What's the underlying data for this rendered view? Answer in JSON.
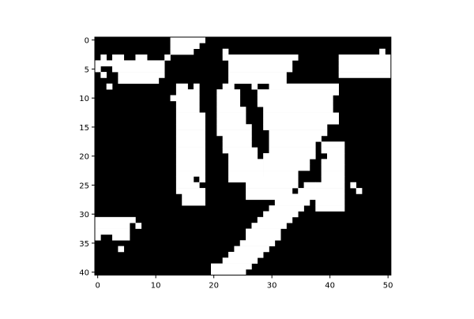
{
  "chart_data": {
    "type": "heatmap",
    "title": "",
    "xlabel": "",
    "ylabel": "",
    "colormap": [
      "#000000",
      "#ffffff"
    ],
    "xlim": [
      -0.5,
      50.5
    ],
    "ylim": [
      40.5,
      -0.5
    ],
    "x_ticks": [
      0,
      10,
      20,
      30,
      40,
      50
    ],
    "y_ticks": [
      0,
      5,
      10,
      15,
      20,
      25,
      30,
      35,
      40
    ],
    "grid": false,
    "value_scale": "binary 0 = black, 1 = white",
    "runs_note": "Each row lists inclusive [start_col, end_col] runs of white (value 1) cells",
    "rows": [
      [
        [
          13,
          18
        ]
      ],
      [
        [
          13,
          17
        ]
      ],
      [
        [
          13,
          16
        ],
        [
          22,
          22
        ],
        [
          49,
          49
        ]
      ],
      [
        [
          1,
          1
        ],
        [
          3,
          4
        ],
        [
          7,
          8
        ],
        [
          12,
          12
        ],
        [
          22,
          34
        ],
        [
          42,
          50
        ]
      ],
      [
        [
          0,
          11
        ],
        [
          23,
          33
        ],
        [
          42,
          50
        ]
      ],
      [
        [
          0,
          0
        ],
        [
          3,
          11
        ],
        [
          23,
          33
        ],
        [
          42,
          50
        ]
      ],
      [
        [
          1,
          1
        ],
        [
          4,
          11
        ],
        [
          23,
          32
        ],
        [
          42,
          50
        ]
      ],
      [
        [
          4,
          10
        ],
        [
          23,
          32
        ]
      ],
      [
        [
          2,
          2
        ],
        [
          14,
          15
        ],
        [
          17,
          17
        ],
        [
          22,
          23
        ],
        [
          27,
          27
        ],
        [
          30,
          41
        ]
      ],
      [
        [
          14,
          16
        ],
        [
          17,
          17
        ],
        [
          21,
          24
        ],
        [
          28,
          41
        ]
      ],
      [
        [
          13,
          15
        ],
        [
          14,
          16
        ],
        [
          17,
          17
        ],
        [
          21,
          24
        ],
        [
          28,
          40
        ]
      ],
      [
        [
          14,
          17
        ],
        [
          21,
          24
        ],
        [
          28,
          40
        ]
      ],
      [
        [
          14,
          17
        ],
        [
          21,
          25
        ],
        [
          29,
          40
        ]
      ],
      [
        [
          14,
          18
        ],
        [
          21,
          25
        ],
        [
          29,
          41
        ]
      ],
      [
        [
          14,
          18
        ],
        [
          21,
          25
        ],
        [
          29,
          41
        ]
      ],
      [
        [
          14,
          18
        ],
        [
          21,
          26
        ],
        [
          29,
          39
        ]
      ],
      [
        [
          14,
          18
        ],
        [
          21,
          26
        ],
        [
          30,
          39
        ]
      ],
      [
        [
          14,
          18
        ],
        [
          22,
          26
        ],
        [
          30,
          38
        ]
      ],
      [
        [
          14,
          18
        ],
        [
          22,
          26
        ],
        [
          30,
          37
        ],
        [
          39,
          42
        ]
      ],
      [
        [
          14,
          18
        ],
        [
          22,
          27
        ],
        [
          30,
          37
        ],
        [
          39,
          42
        ]
      ],
      [
        [
          14,
          18
        ],
        [
          23,
          27
        ],
        [
          29,
          37
        ],
        [
          40,
          42
        ]
      ],
      [
        [
          14,
          18
        ],
        [
          23,
          28
        ],
        [
          29,
          36
        ],
        [
          39,
          42
        ]
      ],
      [
        [
          14,
          18
        ],
        [
          23,
          28
        ],
        [
          29,
          36
        ],
        [
          39,
          42
        ]
      ],
      [
        [
          14,
          18
        ],
        [
          23,
          28
        ],
        [
          29,
          34
        ],
        [
          39,
          42
        ]
      ],
      [
        [
          14,
          16
        ],
        [
          18,
          18
        ],
        [
          23,
          34
        ],
        [
          39,
          42
        ]
      ],
      [
        [
          14,
          17
        ],
        [
          26,
          34
        ],
        [
          36,
          37
        ],
        [
          38,
          42
        ],
        [
          44,
          44
        ]
      ],
      [
        [
          14,
          18
        ],
        [
          26,
          33
        ],
        [
          35,
          37
        ],
        [
          38,
          42
        ],
        [
          45,
          45
        ]
      ],
      [
        [
          15,
          18
        ],
        [
          26,
          33
        ],
        [
          34,
          37
        ],
        [
          38,
          42
        ]
      ],
      [
        [
          15,
          18
        ],
        [
          31,
          36
        ],
        [
          38,
          42
        ]
      ],
      [
        [
          30,
          35
        ],
        [
          38,
          42
        ]
      ],
      [
        [
          29,
          34
        ]
      ],
      [
        [
          0,
          6
        ],
        [
          28,
          33
        ]
      ],
      [
        [
          0,
          5
        ],
        [
          7,
          7
        ],
        [
          27,
          32
        ]
      ],
      [
        [
          0,
          5
        ],
        [
          26,
          31
        ]
      ],
      [
        [
          0,
          0
        ],
        [
          3,
          5
        ],
        [
          26,
          31
        ]
      ],
      [
        [
          25,
          30
        ]
      ],
      [
        [
          4,
          4
        ],
        [
          24,
          29
        ]
      ],
      [
        [
          23,
          28
        ]
      ],
      [
        [
          22,
          27
        ]
      ],
      [
        [
          20,
          26
        ]
      ],
      [
        [
          20,
          25
        ]
      ]
    ]
  }
}
